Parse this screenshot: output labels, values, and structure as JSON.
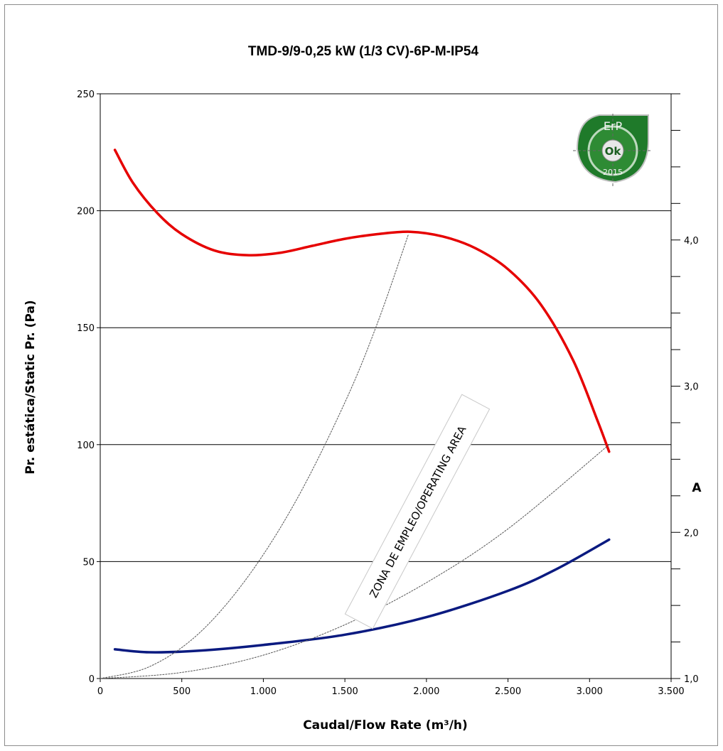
{
  "chart_data": {
    "type": "line",
    "title": "TMD-9/9-0,25 kW (1/3 CV)-6P-M-IP54",
    "xlabel": "Caudal/Flow Rate (m³/h)",
    "ylabel": "Pr. estática/Static Pr. (Pa)",
    "y2label": "A",
    "xlim": [
      0,
      3500
    ],
    "ylim": [
      0,
      250
    ],
    "y2lim": [
      1.0,
      5.0
    ],
    "x_ticks": [
      0,
      500,
      1000,
      1500,
      2000,
      2500,
      3000,
      3500
    ],
    "x_tick_labels": [
      "0",
      "500",
      "1.000",
      "1.500",
      "2.000",
      "2.500",
      "3.000",
      "3.500"
    ],
    "y_ticks": [
      0,
      50,
      100,
      150,
      200,
      250
    ],
    "y_tick_labels": [
      "0",
      "50",
      "100",
      "150",
      "200",
      "250"
    ],
    "y2_ticks": [
      1.0,
      2.0,
      3.0,
      4.0
    ],
    "y2_tick_labels": [
      "1,0",
      "2,0",
      "3,0",
      "4,0"
    ],
    "grid": "horizontal",
    "annotation": "ZONA DE EMPLEO/OPERATING AREA",
    "badge": {
      "top": "ErP",
      "middle": "Ok",
      "bottom": "2015"
    },
    "series": [
      {
        "color": "#e60000",
        "axis": "left",
        "x": [
          90,
          200,
          350,
          500,
          700,
          900,
          1100,
          1300,
          1500,
          1700,
          1900,
          2100,
          2300,
          2500,
          2700,
          2900,
          3050,
          3120
        ],
        "y": [
          226,
          212,
          199,
          190,
          183,
          181,
          182,
          185,
          188,
          190,
          191,
          189,
          184,
          175,
          160,
          136,
          110,
          97
        ]
      },
      {
        "color": "#0a1a80",
        "axis": "right",
        "x": [
          90,
          300,
          600,
          1000,
          1500,
          2000,
          2500,
          2800,
          3120
        ],
        "y": [
          1.2,
          1.18,
          1.19,
          1.23,
          1.3,
          1.42,
          1.6,
          1.75,
          1.95
        ]
      },
      {
        "color": "#555555",
        "axis": "left",
        "style": "dotted",
        "x": [
          0,
          300,
          600,
          900,
          1200,
          1500,
          1700,
          1890
        ],
        "y": [
          0,
          5,
          19,
          43,
          76,
          118,
          152,
          190
        ]
      },
      {
        "color": "#555555",
        "axis": "left",
        "style": "dotted",
        "x": [
          0,
          500,
          1000,
          1500,
          2000,
          2500,
          3120
        ],
        "y": [
          0,
          2.6,
          10,
          23,
          41,
          64,
          100
        ]
      }
    ]
  }
}
